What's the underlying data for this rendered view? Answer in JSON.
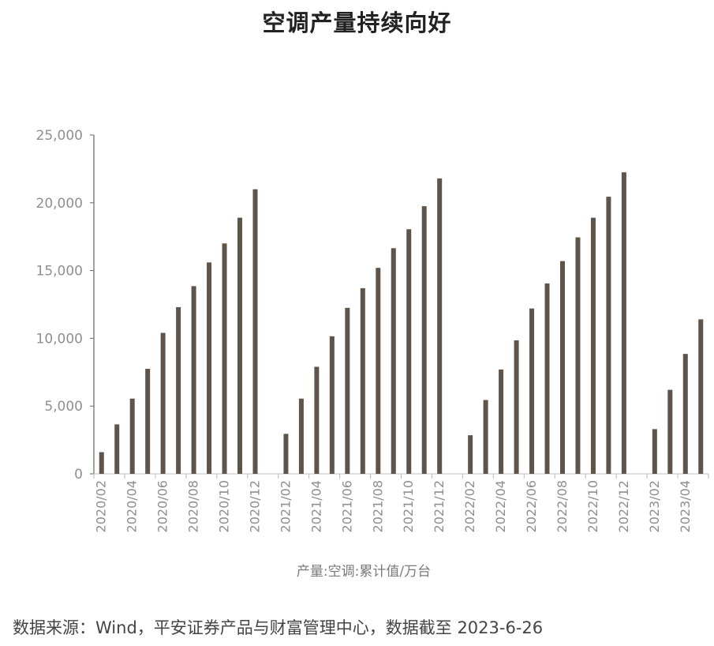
{
  "title": "空调产量持续向好",
  "source": "数据来源：Wind，平安证券产品与财富管理中心，数据截至 2023-6-26",
  "colors": {
    "bar": "#5f5449",
    "axis": "#666666",
    "tick_text": "#8f8f8f"
  },
  "chart_data": {
    "type": "bar",
    "title": "空调产量持续向好",
    "xlabel": "",
    "ylabel": "",
    "ylim": [
      0,
      25000
    ],
    "y_ticks": [
      "0",
      "5,000",
      "10,000",
      "15,000",
      "20,000",
      "25,000"
    ],
    "grid": false,
    "legend": "bottom",
    "series": [
      {
        "name": "产量:空调:累计值/万台",
        "categories": [
          "2020/02",
          "2020/03",
          "2020/04",
          "2020/05",
          "2020/06",
          "2020/07",
          "2020/08",
          "2020/09",
          "2020/10",
          "2020/11",
          "2020/12",
          "2021/01",
          "2021/02",
          "2021/03",
          "2021/04",
          "2021/05",
          "2021/06",
          "2021/07",
          "2021/08",
          "2021/09",
          "2021/10",
          "2021/11",
          "2021/12",
          "2022/01",
          "2022/02",
          "2022/03",
          "2022/04",
          "2022/05",
          "2022/06",
          "2022/07",
          "2022/08",
          "2022/09",
          "2022/10",
          "2022/11",
          "2022/12",
          "2023/01",
          "2023/02",
          "2023/03",
          "2023/04",
          "2023/05"
        ],
        "values": [
          1600,
          3650,
          5550,
          7750,
          10400,
          12300,
          13850,
          15600,
          17000,
          18900,
          21000,
          null,
          2950,
          5550,
          7900,
          10150,
          12250,
          13700,
          15200,
          16650,
          18050,
          19750,
          21800,
          null,
          2850,
          5450,
          7700,
          9850,
          12200,
          14050,
          15700,
          17450,
          18900,
          20450,
          22250,
          null,
          3300,
          6200,
          8850,
          11400
        ]
      }
    ],
    "x_tick_labels": [
      "2020/02",
      "2020/04",
      "2020/06",
      "2020/08",
      "2020/10",
      "2020/12",
      "2021/02",
      "2021/04",
      "2021/06",
      "2021/08",
      "2021/10",
      "2021/12",
      "2022/02",
      "2022/04",
      "2022/06",
      "2022/08",
      "2022/10",
      "2022/12",
      "2023/02",
      "2023/04"
    ]
  }
}
